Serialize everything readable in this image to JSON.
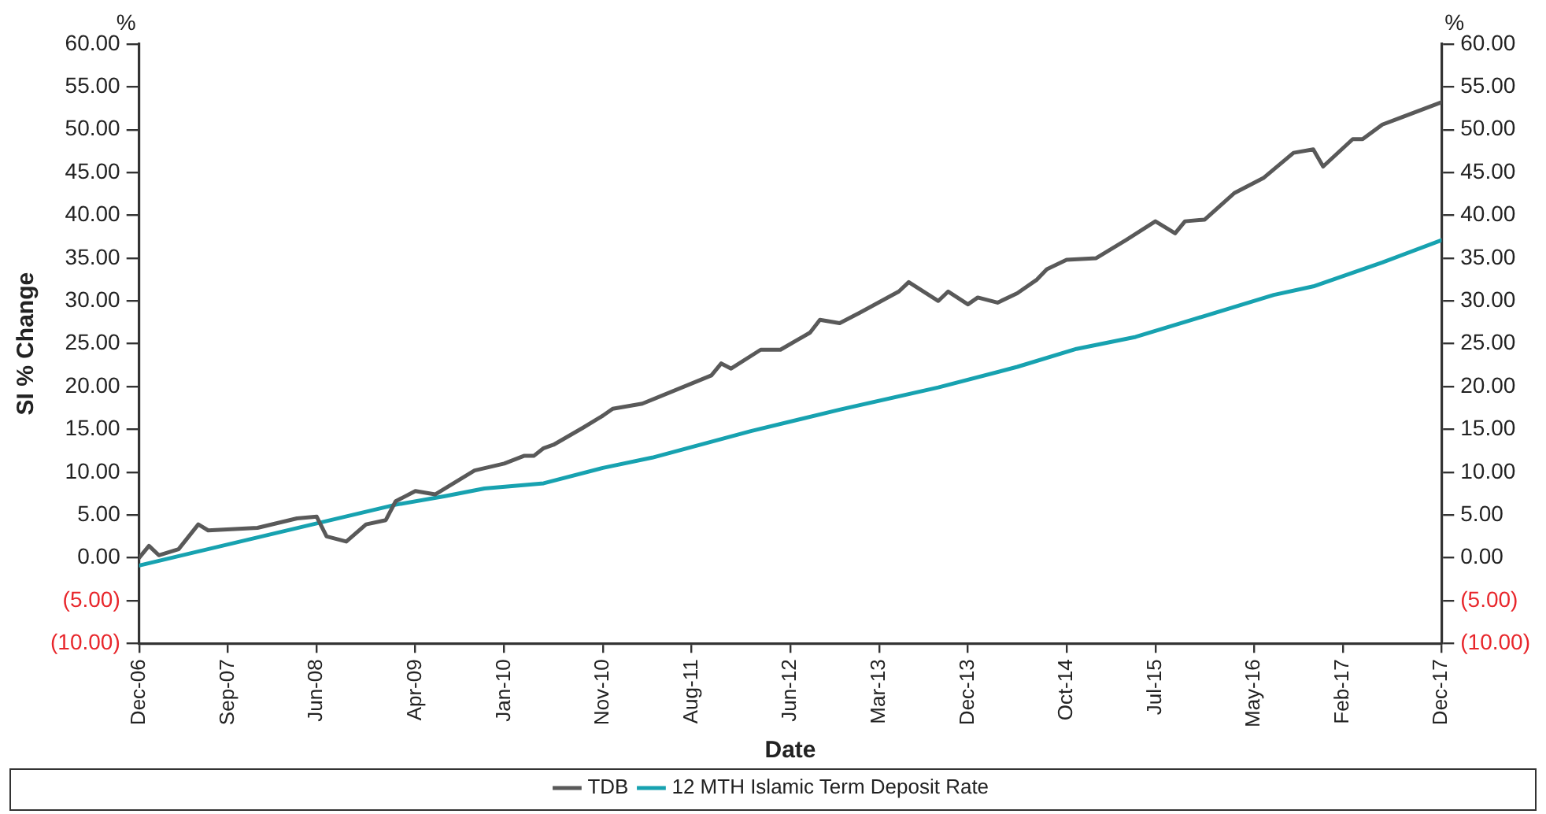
{
  "chart_data": {
    "type": "line",
    "xlabel": "Date",
    "ylabel": "SI % Change",
    "y2label": "%",
    "annotations": [
      "%"
    ],
    "xlim": [
      "2006-12",
      "2017-12"
    ],
    "xticks": [
      {
        "value": "2006-12",
        "label": "Dec-06"
      },
      {
        "value": "2007-09",
        "label": "Sep-07"
      },
      {
        "value": "2008-06",
        "label": "Jun-08"
      },
      {
        "value": "2009-04",
        "label": "Apr-09"
      },
      {
        "value": "2010-01",
        "label": "Jan-10"
      },
      {
        "value": "2010-11",
        "label": "Nov-10"
      },
      {
        "value": "2011-08",
        "label": "Aug-11"
      },
      {
        "value": "2012-06",
        "label": "Jun-12"
      },
      {
        "value": "2013-03",
        "label": "Mar-13"
      },
      {
        "value": "2013-12",
        "label": "Dec-13"
      },
      {
        "value": "2014-10",
        "label": "Oct-14"
      },
      {
        "value": "2015-07",
        "label": "Jul-15"
      },
      {
        "value": "2016-05",
        "label": "May-16"
      },
      {
        "value": "2017-02",
        "label": "Feb-17"
      },
      {
        "value": "2017-12",
        "label": "Dec-17"
      }
    ],
    "ylim": [
      -10,
      60
    ],
    "yticks": [
      {
        "value": -10,
        "label": "(10.00)"
      },
      {
        "value": -5,
        "label": "(5.00)"
      },
      {
        "value": 0,
        "label": "0.00"
      },
      {
        "value": 5,
        "label": "5.00"
      },
      {
        "value": 10,
        "label": "10.00"
      },
      {
        "value": 15,
        "label": "15.00"
      },
      {
        "value": 20,
        "label": "20.00"
      },
      {
        "value": 25,
        "label": "25.00"
      },
      {
        "value": 30,
        "label": "30.00"
      },
      {
        "value": 35,
        "label": "35.00"
      },
      {
        "value": 40,
        "label": "40.00"
      },
      {
        "value": 45,
        "label": "45.00"
      },
      {
        "value": 50,
        "label": "50.00"
      },
      {
        "value": 55,
        "label": "55.00"
      },
      {
        "value": 60,
        "label": "60.00"
      }
    ],
    "y2lim": [
      -10,
      60
    ],
    "y2ticks": [
      {
        "value": -10,
        "label": "(10.00)"
      },
      {
        "value": -5,
        "label": "(5.00)"
      },
      {
        "value": 0,
        "label": "0.00"
      },
      {
        "value": 5,
        "label": "5.00"
      },
      {
        "value": 10,
        "label": "10.00"
      },
      {
        "value": 15,
        "label": "15.00"
      },
      {
        "value": 20,
        "label": "20.00"
      },
      {
        "value": 25,
        "label": "25.00"
      },
      {
        "value": 30,
        "label": "30.00"
      },
      {
        "value": 35,
        "label": "35.00"
      },
      {
        "value": 40,
        "label": "40.00"
      },
      {
        "value": 45,
        "label": "45.00"
      },
      {
        "value": 50,
        "label": "50.00"
      },
      {
        "value": 55,
        "label": "55.00"
      },
      {
        "value": 60,
        "label": "60.00"
      }
    ],
    "legend": "bottom",
    "marker": "none",
    "line_style": "solid",
    "series": [
      {
        "name": "TDB",
        "color": "#595959",
        "x": [
          "2006-12",
          "2007-01",
          "2007-02",
          "2007-04",
          "2007-06",
          "2007-07",
          "2007-12",
          "2008-04",
          "2008-06",
          "2008-07",
          "2008-09",
          "2008-11",
          "2009-01",
          "2009-02",
          "2009-04",
          "2009-06",
          "2009-10",
          "2010-01",
          "2010-03",
          "2010-04",
          "2010-05",
          "2010-06",
          "2010-09",
          "2010-11",
          "2010-12",
          "2011-03",
          "2011-10",
          "2011-11",
          "2011-12",
          "2012-03",
          "2012-05",
          "2012-08",
          "2012-09",
          "2012-11",
          "2013-01",
          "2013-05",
          "2013-06",
          "2013-09",
          "2013-10",
          "2013-12",
          "2014-01",
          "2014-03",
          "2014-05",
          "2014-07",
          "2014-08",
          "2014-10",
          "2015-01",
          "2015-04",
          "2015-07",
          "2015-09",
          "2015-10",
          "2015-12",
          "2016-03",
          "2016-06",
          "2016-09",
          "2016-11",
          "2016-12",
          "2017-03",
          "2017-04",
          "2017-06",
          "2017-12"
        ],
        "values": [
          0.0,
          1.4,
          0.3,
          1.0,
          3.9,
          3.2,
          3.5,
          4.6,
          4.8,
          2.5,
          1.9,
          3.9,
          4.4,
          6.6,
          7.8,
          7.4,
          10.2,
          11.0,
          11.9,
          11.9,
          12.8,
          13.2,
          15.2,
          16.6,
          17.4,
          18.0,
          21.3,
          22.7,
          22.1,
          24.3,
          24.3,
          26.3,
          27.8,
          27.4,
          28.6,
          31.1,
          32.2,
          30.0,
          31.1,
          29.6,
          30.4,
          29.8,
          30.9,
          32.5,
          33.7,
          34.8,
          35.0,
          37.1,
          39.3,
          37.9,
          39.3,
          39.5,
          42.6,
          44.4,
          47.3,
          47.7,
          45.7,
          48.9,
          48.9,
          50.6,
          53.2
        ]
      },
      {
        "name": "12 MTH Islamic Term Deposit Rate",
        "color": "#17a2b0",
        "x": [
          "2006-12",
          "2009-02",
          "2009-07",
          "2009-11",
          "2010-05",
          "2010-11",
          "2011-04",
          "2012-02",
          "2012-11",
          "2013-09",
          "2014-05",
          "2014-11",
          "2015-05",
          "2015-11",
          "2016-07",
          "2016-11",
          "2017-06",
          "2017-12"
        ],
        "values": [
          -0.9,
          6.2,
          7.2,
          8.1,
          8.7,
          10.5,
          11.7,
          14.8,
          17.3,
          19.9,
          22.3,
          24.4,
          25.8,
          27.9,
          30.7,
          31.7,
          34.5,
          37.1
        ]
      }
    ]
  }
}
